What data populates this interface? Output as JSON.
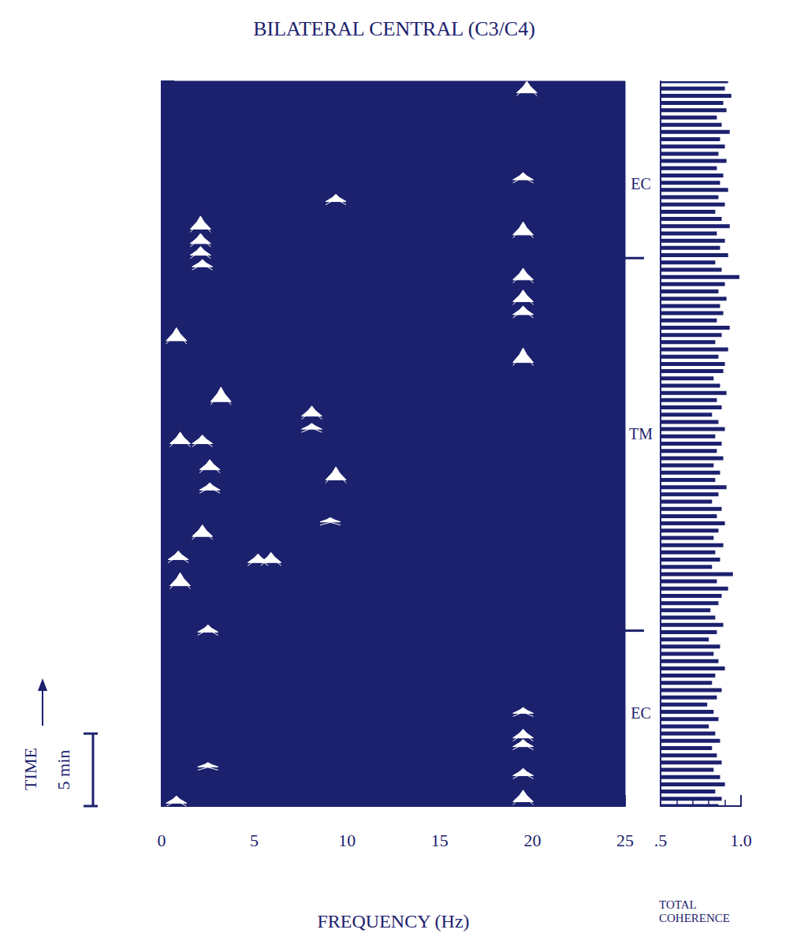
{
  "chart_data": {
    "type": "coherence_spectral_array",
    "title": "BILATERAL CENTRAL (C3/C4)",
    "x_label": "FREQUENCY (Hz)",
    "xlim": [
      0,
      25
    ],
    "xticks": [
      0,
      5,
      10,
      15,
      20,
      25
    ],
    "ylim": [
      0,
      50
    ],
    "yticks": [
      0,
      5,
      10,
      15,
      20,
      25,
      30,
      35,
      40,
      45,
      50
    ],
    "y_label": "TIME",
    "scale_bar": {
      "value": 5,
      "label": "5 min"
    },
    "tick_labels": "x",
    "color": "#1c216e",
    "peaks": {
      "freq": [
        19.7,
        19.5,
        19.5,
        19.5,
        19.5,
        19.5,
        19.5,
        19.5,
        19.5,
        19.5,
        19.5,
        19.5,
        9.4,
        8.1,
        8.1,
        9.4,
        9.1,
        2.1,
        2.1,
        2.1,
        2.2,
        0.8,
        3.2,
        1.0,
        2.2,
        2.6,
        2.6,
        2.2,
        5.2,
        5.9,
        0.9,
        1.0,
        2.5,
        2.5,
        0.8
      ],
      "time": [
        49.2,
        43.2,
        39.4,
        36.3,
        34.8,
        33.9,
        30.6,
        6.4,
        4.7,
        4.1,
        2.1,
        0.3,
        41.7,
        26.9,
        26.0,
        22.5,
        19.6,
        39.8,
        38.8,
        38.0,
        37.2,
        32.1,
        27.9,
        25.0,
        25.0,
        23.2,
        21.8,
        18.6,
        16.8,
        16.8,
        17.0,
        15.2,
        12.0,
        2.7,
        0.2
      ],
      "height": [
        0.8,
        0.5,
        0.9,
        0.8,
        0.8,
        0.6,
        1.0,
        0.4,
        0.6,
        0.5,
        0.5,
        0.8,
        0.5,
        0.7,
        0.4,
        0.9,
        0.3,
        0.9,
        0.7,
        0.6,
        0.5,
        0.9,
        1.0,
        0.8,
        0.6,
        0.7,
        0.5,
        0.8,
        0.6,
        0.7,
        0.6,
        0.9,
        0.5,
        0.3,
        0.5
      ]
    },
    "annotations": [
      {
        "text": "EC",
        "time": 42.9
      },
      {
        "text": "TM",
        "time": 25.7
      },
      {
        "text": "EC",
        "time": 6.4
      }
    ],
    "boundaries": [
      37.8,
      12.1
    ],
    "coherence": {
      "label": "TOTAL COHERENCE",
      "xlim": [
        0.5,
        1.0
      ],
      "xticks": [
        {
          "value": 0.5,
          "label": ".5"
        },
        {
          "value": 1.0,
          "label": "1.0"
        }
      ],
      "time": [
        0,
        0.5,
        1,
        1.5,
        2,
        2.5,
        3,
        3.5,
        4,
        4.5,
        5,
        5.5,
        6,
        6.5,
        7,
        7.5,
        8,
        8.5,
        9,
        9.5,
        10,
        10.5,
        11,
        11.5,
        12,
        12.5,
        13,
        13.5,
        14,
        14.5,
        15,
        15.5,
        16,
        16.5,
        17,
        17.5,
        18,
        18.5,
        19,
        19.5,
        20,
        20.5,
        21,
        21.5,
        22,
        22.5,
        23,
        23.5,
        24,
        24.5,
        25,
        25.5,
        26,
        26.5,
        27,
        27.5,
        28,
        28.5,
        29,
        29.5,
        30,
        30.5,
        31,
        31.5,
        32,
        32.5,
        33,
        33.5,
        34,
        34.5,
        35,
        35.5,
        36,
        36.5,
        37,
        37.5,
        38,
        38.5,
        39,
        39.5,
        40,
        40.5,
        41,
        41.5,
        42,
        42.5,
        43,
        43.5,
        44,
        44.5,
        45,
        45.5,
        46,
        46.5,
        47,
        47.5,
        48,
        48.5,
        49,
        49.5,
        50
      ],
      "values": [
        0.86,
        0.88,
        0.84,
        0.9,
        0.87,
        0.83,
        0.88,
        0.85,
        0.82,
        0.87,
        0.84,
        0.8,
        0.86,
        0.83,
        0.79,
        0.85,
        0.88,
        0.82,
        0.84,
        0.9,
        0.86,
        0.83,
        0.87,
        0.8,
        0.85,
        0.89,
        0.84,
        0.81,
        0.86,
        0.88,
        0.92,
        0.85,
        0.95,
        0.82,
        0.87,
        0.84,
        0.89,
        0.83,
        0.86,
        0.9,
        0.85,
        0.88,
        0.82,
        0.86,
        0.91,
        0.84,
        0.87,
        0.83,
        0.89,
        0.85,
        0.88,
        0.84,
        0.9,
        0.86,
        0.82,
        0.88,
        0.85,
        0.91,
        0.87,
        0.83,
        0.89,
        0.9,
        0.86,
        0.92,
        0.84,
        0.88,
        0.93,
        0.85,
        0.89,
        0.87,
        0.91,
        0.86,
        0.9,
        0.99,
        0.88,
        0.84,
        0.92,
        0.87,
        0.9,
        0.85,
        0.93,
        0.88,
        0.84,
        0.9,
        0.86,
        0.92,
        0.87,
        0.89,
        0.85,
        0.91,
        0.86,
        0.9,
        0.87,
        0.93,
        0.88,
        0.85,
        0.91,
        0.89,
        0.94,
        0.9,
        0.92
      ]
    }
  }
}
